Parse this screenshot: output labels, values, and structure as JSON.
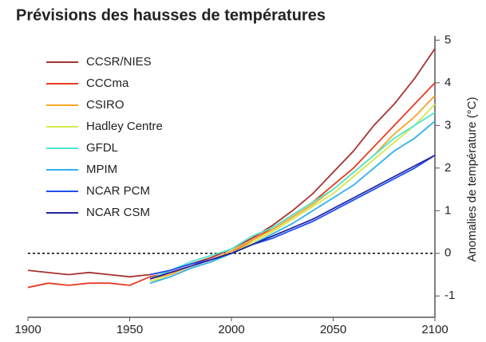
{
  "chart_data": {
    "type": "line",
    "title": "Prévisions des hausses de températures",
    "y_label": "Anomalies de température (°C)",
    "x": [
      1900,
      1910,
      1920,
      1930,
      1940,
      1950,
      1960,
      1970,
      1980,
      1990,
      2000,
      2010,
      2020,
      2030,
      2040,
      2050,
      2060,
      2070,
      2080,
      2090,
      2100
    ],
    "series": [
      {
        "name": "CCSR/NIES",
        "color": "#a83232",
        "values": [
          -0.4,
          -0.45,
          -0.5,
          -0.45,
          -0.5,
          -0.55,
          -0.5,
          -0.4,
          -0.25,
          -0.1,
          0.1,
          0.35,
          0.65,
          1.0,
          1.4,
          1.9,
          2.4,
          3.0,
          3.5,
          4.1,
          4.8
        ]
      },
      {
        "name": "CCCma",
        "color": "#e83a22",
        "values": [
          -0.8,
          -0.7,
          -0.75,
          -0.7,
          -0.7,
          -0.75,
          -0.55,
          -0.45,
          -0.3,
          -0.15,
          0.0,
          0.3,
          0.6,
          0.9,
          1.2,
          1.6,
          2.0,
          2.5,
          3.0,
          3.5,
          4.0
        ]
      },
      {
        "name": "CSIRO",
        "color": "#f5a623",
        "values": [
          null,
          null,
          null,
          null,
          null,
          null,
          -0.6,
          -0.5,
          -0.3,
          -0.15,
          0.05,
          0.3,
          0.55,
          0.85,
          1.15,
          1.5,
          1.9,
          2.3,
          2.8,
          3.2,
          3.7
        ]
      },
      {
        "name": "Hadley Centre",
        "color": "#d4e84a",
        "values": [
          null,
          null,
          null,
          null,
          null,
          null,
          -0.65,
          -0.55,
          -0.35,
          -0.2,
          0.0,
          0.25,
          0.5,
          0.8,
          1.1,
          1.4,
          1.8,
          2.2,
          2.6,
          3.0,
          3.5
        ]
      },
      {
        "name": "GFDL",
        "color": "#4de8d0",
        "values": [
          null,
          null,
          null,
          null,
          null,
          null,
          -0.6,
          -0.4,
          -0.2,
          -0.05,
          0.1,
          0.4,
          0.6,
          0.9,
          1.2,
          1.5,
          1.9,
          2.3,
          2.7,
          3.0,
          3.3
        ]
      },
      {
        "name": "MPIM",
        "color": "#30b0f0",
        "values": [
          null,
          null,
          null,
          null,
          null,
          null,
          -0.7,
          -0.55,
          -0.35,
          -0.2,
          0.0,
          0.2,
          0.45,
          0.7,
          1.0,
          1.3,
          1.6,
          2.0,
          2.4,
          2.7,
          3.1
        ]
      },
      {
        "name": "NCAR PCM",
        "color": "#2050f0",
        "values": [
          null,
          null,
          null,
          null,
          null,
          null,
          -0.5,
          -0.4,
          -0.25,
          -0.15,
          0.0,
          0.2,
          0.35,
          0.55,
          0.75,
          1.0,
          1.25,
          1.5,
          1.75,
          2.0,
          2.3
        ]
      },
      {
        "name": "NCAR CSM",
        "color": "#2424a0",
        "values": [
          null,
          null,
          null,
          null,
          null,
          null,
          -0.6,
          -0.45,
          -0.3,
          -0.15,
          0.0,
          0.2,
          0.4,
          0.6,
          0.8,
          1.05,
          1.3,
          1.55,
          1.8,
          2.05,
          2.3
        ]
      }
    ],
    "xlim": [
      1900,
      2100
    ],
    "xticks": [
      1900,
      1950,
      2000,
      2050,
      2100
    ],
    "ylim": [
      -1.5,
      5.1
    ],
    "yticks": [
      -1,
      0,
      1,
      2,
      3,
      4,
      5
    ],
    "legend": "upper left"
  }
}
